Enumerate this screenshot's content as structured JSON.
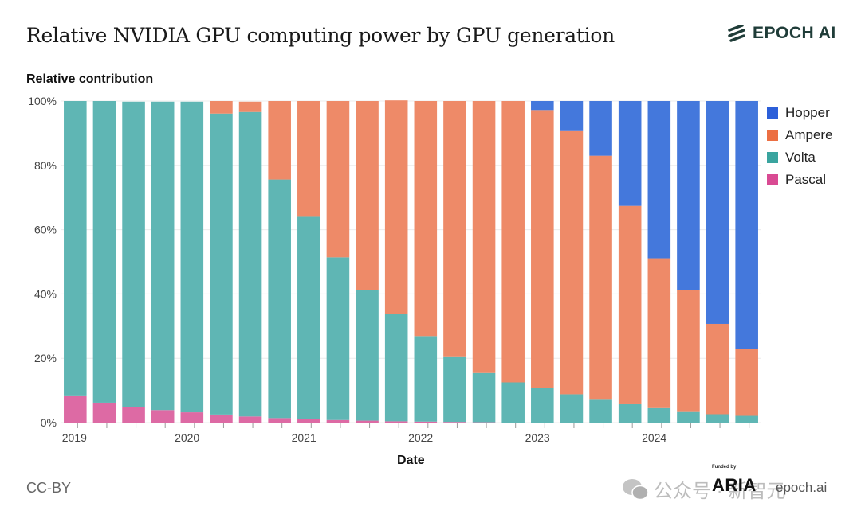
{
  "header": {
    "title": "Relative NVIDIA GPU computing power by GPU generation",
    "logo_text": "EPOCH AI",
    "logo_icon": "epoch-stripes-icon"
  },
  "footer": {
    "license": "CC-BY",
    "funded_by": "Funded by",
    "funder": "ARIA",
    "site": "epoch.ai",
    "watermark": "公众号 · 新智元"
  },
  "chart_data": {
    "type": "bar",
    "stacked": true,
    "normalized": true,
    "title": "Relative NVIDIA GPU computing power by GPU generation",
    "xlabel": "Date",
    "ylabel": "Relative contribution",
    "ylim": [
      0,
      100
    ],
    "yticks": [
      "0%",
      "20%",
      "40%",
      "60%",
      "80%",
      "100%"
    ],
    "ytick_values": [
      0,
      20,
      40,
      60,
      80,
      100
    ],
    "xticks": [
      "2019",
      "2020",
      "2021",
      "2022",
      "2023",
      "2024"
    ],
    "xtick_bar_index": [
      0,
      4,
      8,
      12,
      16,
      20
    ],
    "grid": true,
    "legend_position": "right",
    "categories": [
      "2019-Q1",
      "2019-Q2",
      "2019-Q3",
      "2019-Q4",
      "2020-Q1",
      "2020-Q2",
      "2020-Q3",
      "2020-Q4",
      "2021-Q1",
      "2021-Q2",
      "2021-Q3",
      "2021-Q4",
      "2022-Q1",
      "2022-Q2",
      "2022-Q3",
      "2022-Q4",
      "2023-Q1",
      "2023-Q2",
      "2023-Q3",
      "2023-Q4",
      "2024-Q1",
      "2024-Q2",
      "2024-Q3",
      "2024-Q4"
    ],
    "series": [
      {
        "name": "Pascal",
        "color": "#d9669f",
        "values": [
          8.2,
          6.2,
          4.8,
          3.9,
          3.2,
          2.5,
          1.9,
          1.4,
          1.0,
          0.8,
          0.6,
          0.4,
          0.3,
          0.2,
          0.1,
          0,
          0,
          0,
          0,
          0,
          0,
          0,
          0,
          0
        ]
      },
      {
        "name": "Volta",
        "color": "#5cb5b3",
        "values": [
          91.8,
          93.8,
          95.0,
          95.9,
          96.6,
          93.6,
          94.7,
          74.2,
          63.0,
          50.6,
          40.7,
          33.4,
          26.6,
          20.4,
          15.3,
          12.5,
          10.8,
          8.8,
          7.1,
          5.7,
          4.5,
          3.3,
          2.6,
          2.1
        ]
      },
      {
        "name": "Ampere",
        "color": "#ed8a68",
        "values": [
          0,
          0,
          0,
          0,
          0,
          3.9,
          3.2,
          24.4,
          36.0,
          48.6,
          58.7,
          66.4,
          73.1,
          79.4,
          84.6,
          87.5,
          86.4,
          82.1,
          75.9,
          61.7,
          46.6,
          37.8,
          28.1,
          20.9
        ]
      },
      {
        "name": "Hopper",
        "color": "#4477db",
        "values": [
          0,
          0,
          0,
          0,
          0,
          0,
          0,
          0,
          0,
          0,
          0,
          0,
          0,
          0,
          0,
          0,
          2.8,
          9.1,
          17.0,
          32.6,
          48.9,
          58.9,
          69.3,
          77.0
        ]
      }
    ],
    "legend_order": [
      "Hopper",
      "Ampere",
      "Volta",
      "Pascal"
    ]
  }
}
